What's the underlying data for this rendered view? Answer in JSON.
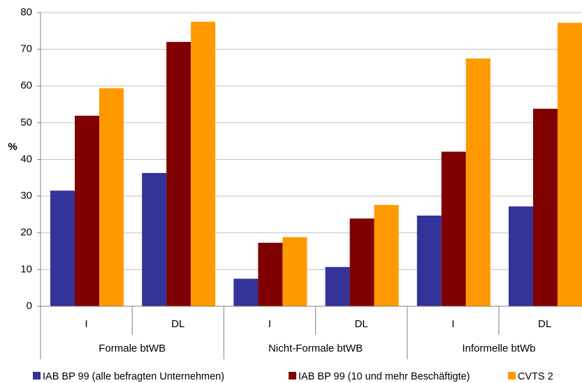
{
  "chart_data": {
    "type": "bar",
    "y_label": "%",
    "categories": [
      "I",
      "DL",
      "I",
      "DL",
      "I",
      "DL"
    ],
    "groups": [
      "Formale btWB",
      "Nicht-Formale btWB",
      "Informelle btWb"
    ],
    "series": [
      {
        "name": "IAB BP 99 (alle befragten Unternehmen)",
        "color": "#333399",
        "values": [
          31.5,
          36.3,
          7.5,
          10.7,
          24.7,
          27.2
        ]
      },
      {
        "name": "IAB BP 99 (10 und mehr Beschäftigte)",
        "color": "#800000",
        "values": [
          51.9,
          72.0,
          17.3,
          23.9,
          42.1,
          53.8
        ]
      },
      {
        "name": "CVTS 2",
        "color": "#ff9900",
        "values": [
          59.4,
          77.5,
          18.8,
          27.6,
          67.5,
          77.2
        ]
      }
    ],
    "ylim": [
      0,
      80
    ],
    "yticks": [
      0,
      10,
      20,
      30,
      40,
      50,
      60,
      70,
      80
    ],
    "grid": true,
    "legend": "bottom"
  }
}
